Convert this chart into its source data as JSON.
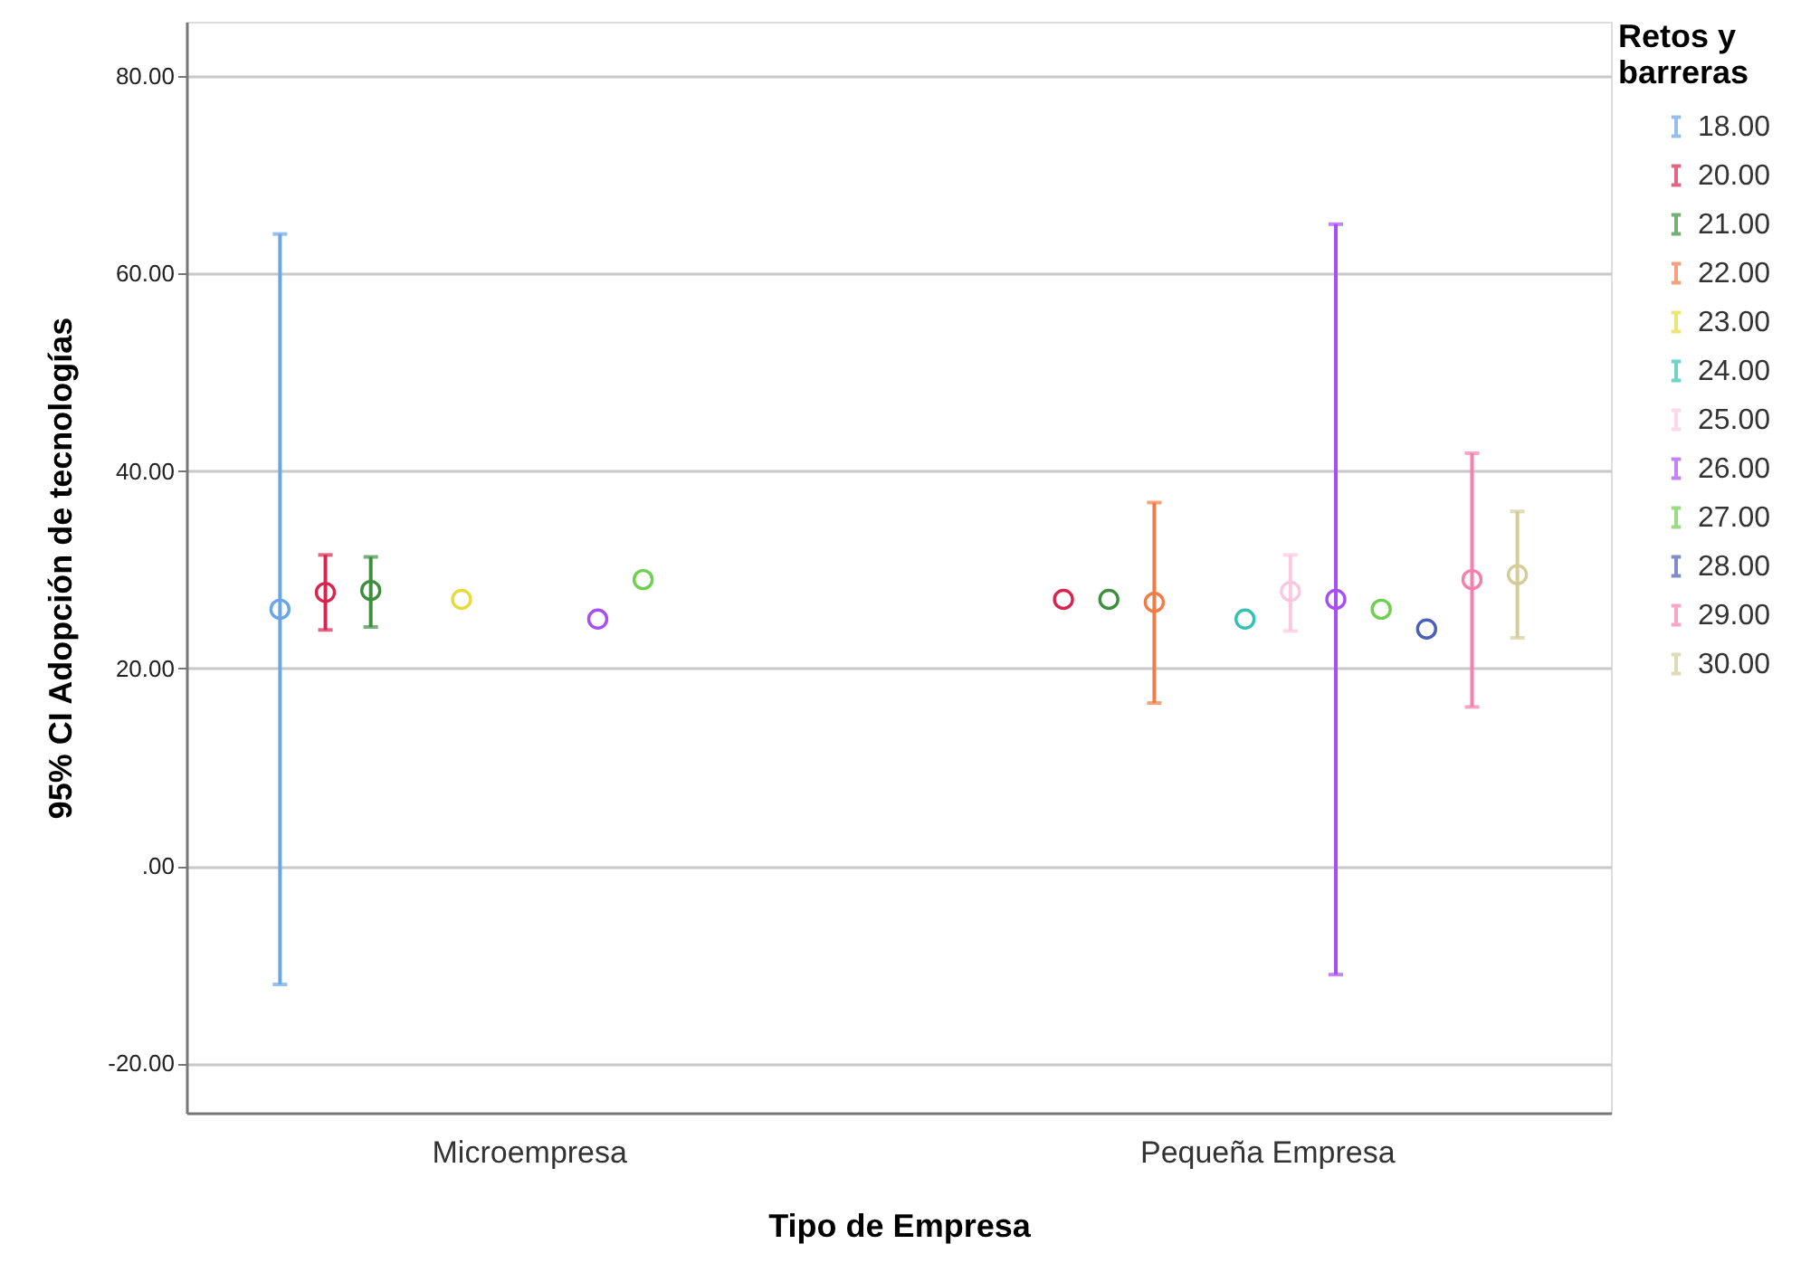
{
  "chart_data": {
    "type": "scatter",
    "xlabel": "Tipo de Empresa",
    "ylabel": "95% CI Adopción de tecnologías",
    "legend_title": "Retos y barreras",
    "categories": [
      "Microempresa",
      "Pequeña Empresa"
    ],
    "ylim": [
      -25,
      85.5
    ],
    "yticks": [
      {
        "value": -20,
        "label": "-20.00"
      },
      {
        "value": 0,
        "label": ".00"
      },
      {
        "value": 20,
        "label": "20.00"
      },
      {
        "value": 40,
        "label": "40.00"
      },
      {
        "value": 60,
        "label": "60.00"
      },
      {
        "value": 80,
        "label": "80.00"
      }
    ],
    "grid": "y",
    "legend": "right",
    "marker": "circle",
    "series": [
      {
        "name": "18.00",
        "color": "#6aa5e8",
        "values": [
          26.0,
          null
        ],
        "errors": [
          [
            -12.0,
            64.0
          ],
          null
        ]
      },
      {
        "name": "20.00",
        "color": "#d92450",
        "values": [
          27.7,
          27.0
        ],
        "errors": [
          [
            23.9,
            31.5
          ],
          null
        ]
      },
      {
        "name": "21.00",
        "color": "#3d8f3d",
        "values": [
          27.9,
          27.0
        ],
        "errors": [
          [
            24.2,
            31.3
          ],
          null
        ]
      },
      {
        "name": "22.00",
        "color": "#f27c45",
        "values": [
          null,
          26.7
        ],
        "errors": [
          null,
          [
            16.5,
            36.8
          ]
        ]
      },
      {
        "name": "23.00",
        "color": "#e5dc3a",
        "values": [
          27.0,
          null
        ]
      },
      {
        "name": "24.00",
        "color": "#33c2b0",
        "values": [
          null,
          25.0
        ]
      },
      {
        "name": "25.00",
        "color": "#fbc8df",
        "values": [
          null,
          27.8
        ],
        "errors": [
          null,
          [
            23.8,
            31.5
          ]
        ]
      },
      {
        "name": "26.00",
        "color": "#a94ef7",
        "values": [
          25.0,
          27.0
        ],
        "errors": [
          null,
          [
            -11.0,
            65.0
          ]
        ]
      },
      {
        "name": "27.00",
        "color": "#6fcf4f",
        "values": [
          29.0,
          26.0
        ]
      },
      {
        "name": "28.00",
        "color": "#4a5fb5",
        "values": [
          null,
          24.0
        ]
      },
      {
        "name": "29.00",
        "color": "#f67fae",
        "values": [
          null,
          29.0
        ],
        "errors": [
          null,
          [
            16.1,
            41.8
          ]
        ]
      },
      {
        "name": "30.00",
        "color": "#d4cc99",
        "values": [
          null,
          29.5
        ],
        "errors": [
          null,
          [
            23.1,
            35.9
          ]
        ]
      }
    ]
  }
}
